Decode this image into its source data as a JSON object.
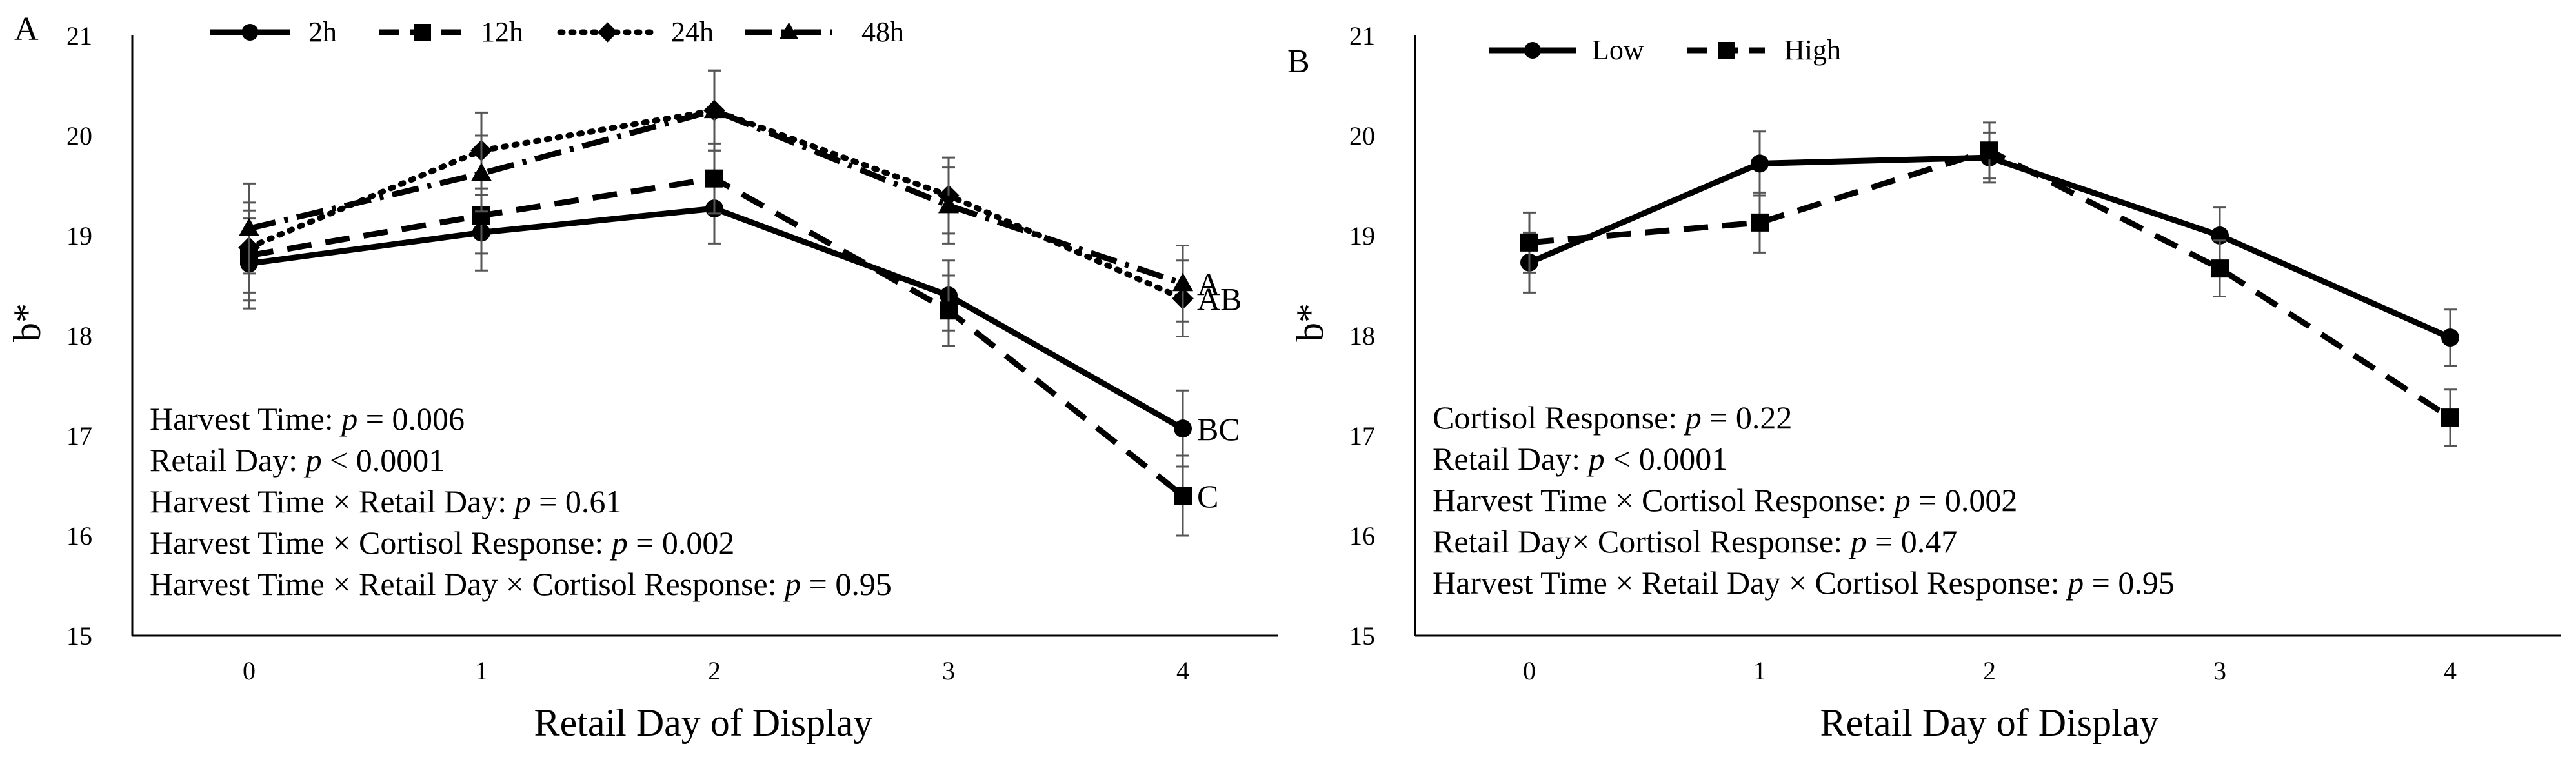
{
  "chart_data": [
    {
      "panel_label": "A",
      "type": "line",
      "xlabel": "Retail Day of Display",
      "ylabel": "b*",
      "x": [
        0,
        1,
        2,
        3,
        4
      ],
      "x_tick_labels": [
        "0",
        "1",
        "2",
        "3",
        "4"
      ],
      "y_tick_labels": [
        "15",
        "16",
        "17",
        "18",
        "19",
        "20",
        "21"
      ],
      "ylim": [
        15,
        21
      ],
      "grid": false,
      "legend_position": "top",
      "series": [
        {
          "name": "2h",
          "line_style": "solid",
          "marker": "circle",
          "values": [
            18.72,
            19.03,
            19.27,
            18.4,
            17.07
          ],
          "errors": [
            0.45,
            0.38,
            0.35,
            0.35,
            0.38
          ]
        },
        {
          "name": "12h",
          "line_style": "dashed",
          "marker": "square",
          "values": [
            18.8,
            19.2,
            19.57,
            18.25,
            16.4
          ],
          "errors": [
            0.45,
            0.38,
            0.35,
            0.35,
            0.4
          ]
        },
        {
          "name": "24h",
          "line_style": "dotted",
          "marker": "diamond",
          "values": [
            18.88,
            19.85,
            20.25,
            19.4,
            18.37
          ],
          "errors": [
            0.45,
            0.38,
            0.4,
            0.38,
            0.38
          ]
        },
        {
          "name": "48h",
          "line_style": "dashdot",
          "marker": "triangle",
          "values": [
            19.07,
            19.62,
            20.25,
            19.3,
            18.52
          ],
          "errors": [
            0.45,
            0.38,
            0.4,
            0.38,
            0.38
          ]
        }
      ],
      "end_labels": [
        {
          "series": "48h",
          "text": "A"
        },
        {
          "series": "24h",
          "text": "AB"
        },
        {
          "series": "2h",
          "text": "BC"
        },
        {
          "series": "12h",
          "text": "C"
        }
      ],
      "annotations": [
        {
          "label": "Harvest Time: ",
          "italic": "p",
          "value": " = 0.006"
        },
        {
          "label": "Retail Day:  ",
          "italic": "p",
          "value": " < 0.0001"
        },
        {
          "label": "Harvest Time × Retail Day: ",
          "italic": "p",
          "value": " = 0.61"
        },
        {
          "label": "Harvest Time × Cortisol Response: ",
          "italic": "p",
          "value": " = 0.002"
        },
        {
          "label": "Harvest Time × Retail Day × Cortisol Response: ",
          "italic": "p",
          "value": " = 0.95"
        }
      ]
    },
    {
      "panel_label": "B",
      "type": "line",
      "xlabel": "Retail Day of Display",
      "ylabel": "b*",
      "x": [
        0,
        1,
        2,
        3,
        4
      ],
      "x_tick_labels": [
        "0",
        "1",
        "2",
        "3",
        "4"
      ],
      "y_tick_labels": [
        "15",
        "16",
        "17",
        "18",
        "19",
        "20",
        "21"
      ],
      "ylim": [
        15,
        21
      ],
      "grid": false,
      "legend_position": "top-left",
      "series": [
        {
          "name": "Low",
          "line_style": "solid",
          "marker": "circle",
          "values": [
            18.73,
            19.72,
            19.78,
            19.0,
            17.98
          ],
          "errors": [
            0.3,
            0.32,
            0.25,
            0.28,
            0.28
          ]
        },
        {
          "name": "High",
          "line_style": "dashed",
          "marker": "square",
          "values": [
            18.93,
            19.13,
            19.85,
            18.67,
            17.18
          ],
          "errors": [
            0.3,
            0.3,
            0.28,
            0.28,
            0.28
          ]
        }
      ],
      "end_labels": [],
      "annotations": [
        {
          "label": "Cortisol Response: ",
          "italic": "p",
          "value": " = 0.22"
        },
        {
          "label": "Retail Day: ",
          "italic": "p",
          "value": " < 0.0001"
        },
        {
          "label": "Harvest Time × Cortisol Response: ",
          "italic": "p",
          "value": " = 0.002"
        },
        {
          "label": "Retail Day× Cortisol Response: ",
          "italic": "p",
          "value": " = 0.47"
        },
        {
          "label": "Harvest Time × Retail Day × Cortisol Response: ",
          "italic": "p",
          "value": " = 0.95"
        }
      ]
    }
  ]
}
